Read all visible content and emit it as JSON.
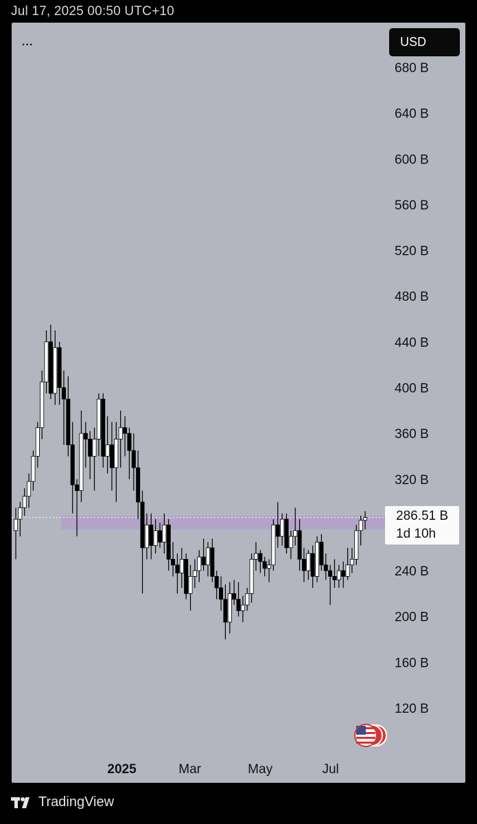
{
  "header": {
    "timestamp": "Jul 17, 2025 00:50 UTC+10"
  },
  "toolbar": {
    "menu_label": "...",
    "currency_label": "USD"
  },
  "price_tag": {
    "price": "286.51 B",
    "countdown": "1d 10h"
  },
  "footer": {
    "brand": "TradingView"
  },
  "colors": {
    "background": "#000000",
    "chart_bg": "#b3b6bf",
    "zone": "#b39dc9",
    "up_body": "#ffffff",
    "down_body": "#000000"
  },
  "chart_data": {
    "type": "candlestick",
    "y_unit": "B",
    "y_ticks": [
      "680 B",
      "640 B",
      "600 B",
      "560 B",
      "520 B",
      "480 B",
      "440 B",
      "400 B",
      "360 B",
      "320 B",
      "240 B",
      "200 B",
      "160 B",
      "120 B"
    ],
    "y_tick_values": [
      680,
      640,
      600,
      560,
      520,
      480,
      440,
      400,
      360,
      320,
      240,
      200,
      160,
      120
    ],
    "x_ticks": [
      {
        "label": "2025",
        "bold": true,
        "date": "2025-01-01"
      },
      {
        "label": "Mar",
        "bold": false,
        "date": "2025-03-01"
      },
      {
        "label": "May",
        "bold": false,
        "date": "2025-05-01"
      },
      {
        "label": "Jul",
        "bold": false,
        "date": "2025-07-01"
      }
    ],
    "ylim": [
      100,
      700
    ],
    "last_price": 286.51,
    "support_zone": [
      276,
      288
    ],
    "candles": [
      [
        275,
        295,
        250,
        285
      ],
      [
        285,
        300,
        270,
        295
      ],
      [
        295,
        312,
        288,
        305
      ],
      [
        305,
        325,
        295,
        318
      ],
      [
        318,
        345,
        310,
        340
      ],
      [
        340,
        370,
        330,
        365
      ],
      [
        365,
        415,
        355,
        405
      ],
      [
        405,
        450,
        395,
        440
      ],
      [
        440,
        455,
        390,
        395
      ],
      [
        395,
        450,
        385,
        435
      ],
      [
        435,
        440,
        385,
        400
      ],
      [
        400,
        415,
        350,
        390
      ],
      [
        390,
        410,
        340,
        350
      ],
      [
        350,
        370,
        290,
        315
      ],
      [
        315,
        320,
        270,
        310
      ],
      [
        310,
        380,
        300,
        360
      ],
      [
        360,
        370,
        330,
        355
      ],
      [
        355,
        362,
        320,
        340
      ],
      [
        340,
        365,
        310,
        355
      ],
      [
        355,
        395,
        340,
        390
      ],
      [
        390,
        395,
        330,
        340
      ],
      [
        340,
        375,
        325,
        350
      ],
      [
        350,
        370,
        310,
        330
      ],
      [
        330,
        370,
        300,
        355
      ],
      [
        355,
        380,
        330,
        365
      ],
      [
        365,
        375,
        340,
        360
      ],
      [
        360,
        365,
        320,
        345
      ],
      [
        345,
        360,
        310,
        330
      ],
      [
        330,
        345,
        285,
        300
      ],
      [
        300,
        310,
        220,
        260
      ],
      [
        260,
        290,
        250,
        280
      ],
      [
        280,
        290,
        250,
        262
      ],
      [
        262,
        285,
        255,
        275
      ],
      [
        275,
        282,
        260,
        265
      ],
      [
        265,
        290,
        255,
        280
      ],
      [
        280,
        285,
        240,
        250
      ],
      [
        250,
        265,
        235,
        245
      ],
      [
        245,
        255,
        220,
        238
      ],
      [
        238,
        260,
        225,
        250
      ],
      [
        250,
        255,
        215,
        220
      ],
      [
        220,
        245,
        205,
        235
      ],
      [
        235,
        250,
        225,
        240
      ],
      [
        240,
        258,
        230,
        252
      ],
      [
        252,
        268,
        240,
        245
      ],
      [
        245,
        265,
        235,
        260
      ],
      [
        260,
        268,
        230,
        235
      ],
      [
        235,
        240,
        215,
        225
      ],
      [
        225,
        235,
        205,
        215
      ],
      [
        215,
        228,
        180,
        195
      ],
      [
        195,
        230,
        185,
        220
      ],
      [
        220,
        232,
        210,
        215
      ],
      [
        215,
        230,
        200,
        205
      ],
      [
        205,
        218,
        195,
        210
      ],
      [
        210,
        225,
        205,
        220
      ],
      [
        220,
        255,
        212,
        250
      ],
      [
        250,
        265,
        240,
        255
      ],
      [
        255,
        258,
        238,
        248
      ],
      [
        248,
        252,
        235,
        242
      ],
      [
        242,
        250,
        230,
        245
      ],
      [
        245,
        285,
        240,
        280
      ],
      [
        280,
        300,
        260,
        270
      ],
      [
        270,
        290,
        262,
        285
      ],
      [
        285,
        290,
        255,
        260
      ],
      [
        260,
        275,
        250,
        270
      ],
      [
        270,
        295,
        262,
        275
      ],
      [
        275,
        285,
        240,
        250
      ],
      [
        250,
        260,
        230,
        240
      ],
      [
        240,
        258,
        232,
        255
      ],
      [
        255,
        262,
        225,
        235
      ],
      [
        235,
        270,
        230,
        265
      ],
      [
        265,
        272,
        240,
        245
      ],
      [
        245,
        255,
        232,
        240
      ],
      [
        240,
        245,
        210,
        235
      ],
      [
        235,
        250,
        225,
        232
      ],
      [
        232,
        245,
        225,
        240
      ],
      [
        240,
        248,
        225,
        235
      ],
      [
        235,
        260,
        232,
        245
      ],
      [
        245,
        260,
        238,
        250
      ],
      [
        250,
        280,
        245,
        275
      ],
      [
        275,
        288,
        262,
        284
      ],
      [
        284,
        292,
        276,
        286.51
      ]
    ]
  }
}
